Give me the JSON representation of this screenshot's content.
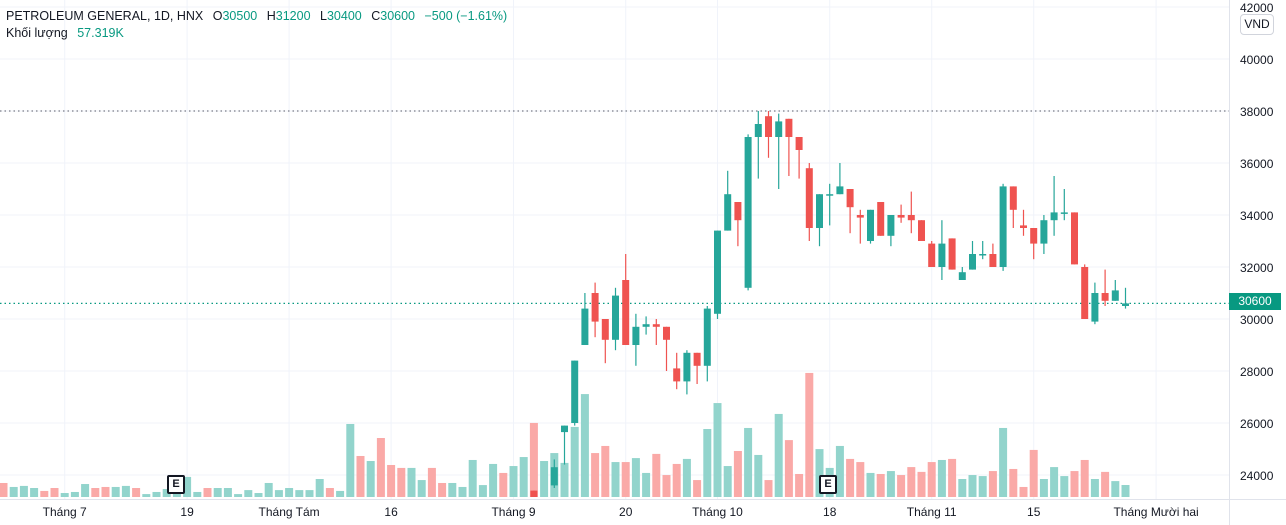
{
  "header": {
    "symbol": "PETROLEUM GENERAL, 1D, HNX",
    "open_label": "O",
    "open": "30500",
    "high_label": "H",
    "high": "31200",
    "low_label": "L",
    "low": "30400",
    "close_label": "C",
    "close": "30600",
    "change": "−500 (−1.61%)",
    "volume_label": "Khối lượng",
    "volume": "57.319K"
  },
  "currency_button": "VND",
  "last_price_tag": "30600",
  "event_marker": "E",
  "colors": {
    "up": "#26a69a",
    "down": "#ef5350",
    "up_volume": "#92d4cc",
    "down_volume": "#faa9a7",
    "value_text": "#089981",
    "price_line": "#089981"
  },
  "chart_data": {
    "type": "candlestick",
    "title": "PETROLEUM GENERAL, 1D, HNX",
    "y_axis": {
      "ticks": [
        "24000",
        "26000",
        "28000",
        "30000",
        "32000",
        "34000",
        "36000",
        "38000",
        "40000",
        "42000"
      ],
      "range": [
        23200,
        42200
      ],
      "position": "right"
    },
    "x_axis": {
      "ticks": [
        "Tháng 7",
        "19",
        "Tháng Tám",
        "16",
        "Tháng 9",
        "20",
        "Tháng 10",
        "18",
        "Tháng 11",
        "15",
        "Tháng Mười hai"
      ]
    },
    "grid": true,
    "reference_lines": [
      {
        "price": 38000,
        "style": "dotted",
        "color": "#787b86"
      },
      {
        "price": 30600,
        "style": "dotted",
        "color": "#089981"
      }
    ],
    "volume_k": [
      67,
      48,
      53,
      43,
      29,
      43,
      19,
      24,
      62,
      43,
      48,
      48,
      53,
      43,
      14,
      24,
      38,
      24,
      96,
      24,
      43,
      43,
      43,
      14,
      33,
      19,
      67,
      33,
      43,
      33,
      33,
      86,
      43,
      29,
      349,
      196,
      172,
      282,
      153,
      139,
      139,
      81,
      139,
      67,
      67,
      48,
      177,
      57,
      158,
      115,
      148,
      191,
      354,
      172,
      210,
      163,
      335,
      492,
      210,
      244,
      167,
      167,
      186,
      115,
      206,
      105,
      158,
      182,
      81,
      325,
      449,
      148,
      220,
      330,
      201,
      81,
      397,
      272,
      110,
      593,
      229,
      139,
      244,
      182,
      167,
      115,
      110,
      124,
      105,
      143,
      120,
      167,
      177,
      182,
      86,
      105,
      100,
      124,
      330,
      134,
      48,
      225,
      86,
      143,
      100,
      124,
      177,
      86,
      120,
      76,
      57.319
    ],
    "up": [
      0,
      1,
      1,
      1,
      0,
      0,
      1,
      1,
      1,
      0,
      0,
      1,
      1,
      0,
      1,
      1,
      1,
      1,
      1,
      1,
      0,
      1,
      1,
      1,
      1,
      1,
      1,
      1,
      1,
      1,
      1,
      1,
      0,
      1,
      1,
      0,
      1,
      0,
      0,
      0,
      1,
      1,
      0,
      0,
      1,
      1,
      1,
      1,
      1,
      0,
      1,
      1,
      0,
      1,
      1,
      1,
      1,
      1,
      0,
      0,
      1,
      0,
      1,
      1,
      0,
      0,
      0,
      1,
      0,
      1,
      1,
      1,
      0,
      1,
      1,
      0,
      1,
      0,
      0,
      0,
      1,
      1,
      1,
      0,
      0,
      1,
      0,
      1,
      0,
      0,
      0,
      0,
      1,
      0,
      1,
      1,
      1,
      0,
      1,
      0,
      0,
      0,
      1,
      1,
      1,
      0,
      0,
      1,
      0,
      1,
      1
    ],
    "ohlc_first_index": 52,
    "ohlc": [
      [
        23400,
        23400,
        23000,
        23100
      ],
      null,
      [
        23600,
        24600,
        23500,
        24300
      ],
      [
        25650,
        25900,
        24400,
        25900
      ],
      [
        26000,
        28400,
        25900,
        28400
      ],
      [
        29000,
        31000,
        29000,
        30400
      ],
      [
        31000,
        31400,
        29300,
        29900
      ],
      [
        30000,
        30000,
        28300,
        29200
      ],
      [
        29200,
        31200,
        28800,
        30900
      ],
      [
        31500,
        32500,
        29000,
        29000
      ],
      [
        29000,
        30200,
        28200,
        29700
      ],
      [
        29700,
        30100,
        29400,
        29800
      ],
      [
        29800,
        30000,
        29000,
        29700
      ],
      [
        29700,
        29700,
        28000,
        29200
      ],
      [
        28100,
        28700,
        27300,
        27600
      ],
      [
        27600,
        28800,
        27100,
        28700
      ],
      [
        28700,
        28700,
        27500,
        28200
      ],
      [
        28200,
        30500,
        27600,
        30400
      ],
      [
        30200,
        33400,
        30000,
        33400
      ],
      [
        33400,
        35700,
        33400,
        34800
      ],
      [
        34500,
        34500,
        32800,
        33800
      ],
      [
        31200,
        37100,
        31100,
        37000
      ],
      [
        37000,
        38000,
        35400,
        37500
      ],
      [
        37800,
        38000,
        36200,
        37000
      ],
      [
        37000,
        37900,
        35000,
        37600
      ],
      [
        37700,
        37700,
        35500,
        37000
      ],
      [
        37000,
        37000,
        35400,
        36500
      ],
      [
        35800,
        36000,
        33000,
        33500
      ],
      [
        33500,
        34800,
        32800,
        34800
      ],
      [
        34800,
        35200,
        33600,
        34800
      ],
      [
        34800,
        36000,
        34800,
        35100
      ],
      [
        35000,
        35000,
        33300,
        34300
      ],
      [
        34000,
        34200,
        32900,
        33900
      ],
      [
        33000,
        34200,
        32900,
        34200
      ],
      [
        34500,
        34500,
        33200,
        33200
      ],
      [
        33200,
        34000,
        32800,
        34000
      ],
      [
        34000,
        34400,
        33700,
        33900
      ],
      [
        34000,
        34900,
        33300,
        33800
      ],
      [
        33800,
        33800,
        33000,
        33000
      ],
      [
        32900,
        33000,
        32000,
        32000
      ],
      [
        32000,
        33800,
        31500,
        32900
      ],
      [
        33100,
        33100,
        31900,
        31900
      ],
      [
        31500,
        32000,
        31500,
        31800
      ],
      [
        31900,
        33000,
        31900,
        32500
      ],
      [
        32500,
        33000,
        32300,
        32500
      ],
      [
        32500,
        32900,
        32000,
        32000
      ],
      [
        32000,
        35200,
        31850,
        35100
      ],
      [
        35100,
        35100,
        33500,
        34200
      ],
      [
        33600,
        34200,
        33200,
        33500
      ],
      [
        33500,
        33500,
        32300,
        32900
      ],
      [
        32900,
        34000,
        32500,
        33800
      ],
      [
        33800,
        35500,
        33200,
        34100
      ],
      [
        34100,
        35000,
        33800,
        34100
      ],
      [
        34100,
        34100,
        32100,
        32100
      ],
      [
        32000,
        32100,
        30000,
        30000
      ],
      [
        29900,
        31400,
        29800,
        31000
      ],
      [
        31000,
        31900,
        30500,
        30700
      ],
      [
        30700,
        31500,
        30700,
        31100
      ],
      [
        30500,
        31200,
        30400,
        30600
      ]
    ]
  }
}
